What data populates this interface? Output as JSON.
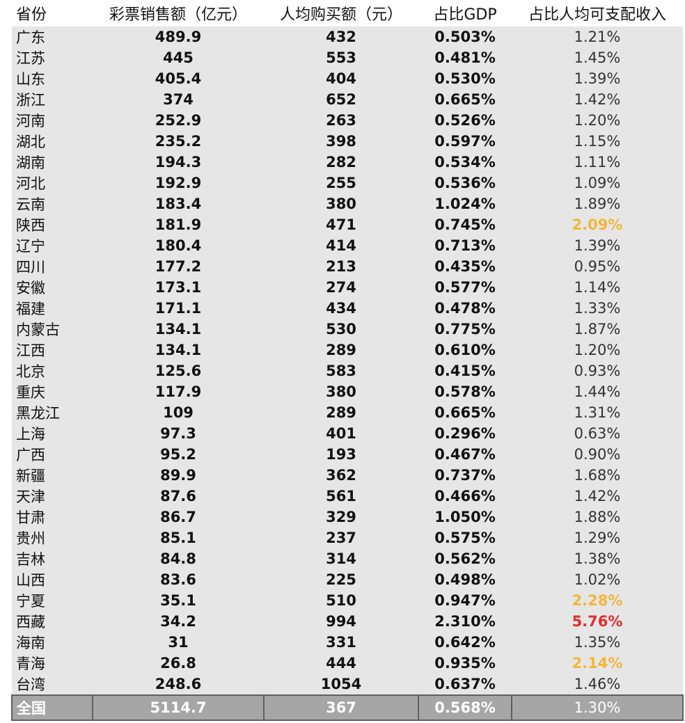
{
  "headers": [
    "省份",
    "彩票销售额（亿元）",
    "人均购买额（元）",
    "占比GDP",
    "占比人均可支配收入"
  ],
  "colors": {
    "highlight_yellow": "#f2b63b",
    "highlight_red": "#e12d2d",
    "row_bg": "#e6e6e6",
    "total_bg": "#a6a6a6"
  },
  "rows": [
    {
      "province": "广东",
      "sales": "489.9",
      "per_capita": "432",
      "gdp_share": "0.503%",
      "income_share": "1.21%",
      "flag": ""
    },
    {
      "province": "江苏",
      "sales": "445",
      "per_capita": "553",
      "gdp_share": "0.481%",
      "income_share": "1.45%",
      "flag": ""
    },
    {
      "province": "山东",
      "sales": "405.4",
      "per_capita": "404",
      "gdp_share": "0.530%",
      "income_share": "1.39%",
      "flag": ""
    },
    {
      "province": "浙江",
      "sales": "374",
      "per_capita": "652",
      "gdp_share": "0.665%",
      "income_share": "1.42%",
      "flag": ""
    },
    {
      "province": "河南",
      "sales": "252.9",
      "per_capita": "263",
      "gdp_share": "0.526%",
      "income_share": "1.20%",
      "flag": ""
    },
    {
      "province": "湖北",
      "sales": "235.2",
      "per_capita": "398",
      "gdp_share": "0.597%",
      "income_share": "1.15%",
      "flag": ""
    },
    {
      "province": "湖南",
      "sales": "194.3",
      "per_capita": "282",
      "gdp_share": "0.534%",
      "income_share": "1.11%",
      "flag": ""
    },
    {
      "province": "河北",
      "sales": "192.9",
      "per_capita": "255",
      "gdp_share": "0.536%",
      "income_share": "1.09%",
      "flag": ""
    },
    {
      "province": "云南",
      "sales": "183.4",
      "per_capita": "380",
      "gdp_share": "1.024%",
      "income_share": "1.89%",
      "flag": ""
    },
    {
      "province": "陕西",
      "sales": "181.9",
      "per_capita": "471",
      "gdp_share": "0.745%",
      "income_share": "2.09%",
      "flag": "hl"
    },
    {
      "province": "辽宁",
      "sales": "180.4",
      "per_capita": "414",
      "gdp_share": "0.713%",
      "income_share": "1.39%",
      "flag": ""
    },
    {
      "province": "四川",
      "sales": "177.2",
      "per_capita": "213",
      "gdp_share": "0.435%",
      "income_share": "0.95%",
      "flag": ""
    },
    {
      "province": "安徽",
      "sales": "173.1",
      "per_capita": "274",
      "gdp_share": "0.577%",
      "income_share": "1.14%",
      "flag": ""
    },
    {
      "province": "福建",
      "sales": "171.1",
      "per_capita": "434",
      "gdp_share": "0.478%",
      "income_share": "1.33%",
      "flag": ""
    },
    {
      "province": "内蒙古",
      "sales": "134.1",
      "per_capita": "530",
      "gdp_share": "0.775%",
      "income_share": "1.87%",
      "flag": ""
    },
    {
      "province": "江西",
      "sales": "134.1",
      "per_capita": "289",
      "gdp_share": "0.610%",
      "income_share": "1.20%",
      "flag": ""
    },
    {
      "province": "北京",
      "sales": "125.6",
      "per_capita": "583",
      "gdp_share": "0.415%",
      "income_share": "0.93%",
      "flag": ""
    },
    {
      "province": "重庆",
      "sales": "117.9",
      "per_capita": "380",
      "gdp_share": "0.578%",
      "income_share": "1.44%",
      "flag": ""
    },
    {
      "province": "黑龙江",
      "sales": "109",
      "per_capita": "289",
      "gdp_share": "0.665%",
      "income_share": "1.31%",
      "flag": ""
    },
    {
      "province": "上海",
      "sales": "97.3",
      "per_capita": "401",
      "gdp_share": "0.296%",
      "income_share": "0.63%",
      "flag": ""
    },
    {
      "province": "广西",
      "sales": "95.2",
      "per_capita": "193",
      "gdp_share": "0.467%",
      "income_share": "0.90%",
      "flag": ""
    },
    {
      "province": "新疆",
      "sales": "89.9",
      "per_capita": "362",
      "gdp_share": "0.737%",
      "income_share": "1.68%",
      "flag": ""
    },
    {
      "province": "天津",
      "sales": "87.6",
      "per_capita": "561",
      "gdp_share": "0.466%",
      "income_share": "1.42%",
      "flag": ""
    },
    {
      "province": "甘肃",
      "sales": "86.7",
      "per_capita": "329",
      "gdp_share": "1.050%",
      "income_share": "1.88%",
      "flag": ""
    },
    {
      "province": "贵州",
      "sales": "85.1",
      "per_capita": "237",
      "gdp_share": "0.575%",
      "income_share": "1.29%",
      "flag": ""
    },
    {
      "province": "吉林",
      "sales": "84.8",
      "per_capita": "314",
      "gdp_share": "0.562%",
      "income_share": "1.38%",
      "flag": ""
    },
    {
      "province": "山西",
      "sales": "83.6",
      "per_capita": "225",
      "gdp_share": "0.498%",
      "income_share": "1.02%",
      "flag": ""
    },
    {
      "province": "宁夏",
      "sales": "35.1",
      "per_capita": "510",
      "gdp_share": "0.947%",
      "income_share": "2.28%",
      "flag": "hl"
    },
    {
      "province": "西藏",
      "sales": "34.2",
      "per_capita": "994",
      "gdp_share": "2.310%",
      "income_share": "5.76%",
      "flag": "alert"
    },
    {
      "province": "海南",
      "sales": "31",
      "per_capita": "331",
      "gdp_share": "0.642%",
      "income_share": "1.35%",
      "flag": ""
    },
    {
      "province": "青海",
      "sales": "26.8",
      "per_capita": "444",
      "gdp_share": "0.935%",
      "income_share": "2.14%",
      "flag": "hl"
    },
    {
      "province": "台湾",
      "sales": "248.6",
      "per_capita": "1054",
      "gdp_share": "0.637%",
      "income_share": "1.46%",
      "flag": ""
    }
  ],
  "total": {
    "province": "全国",
    "sales": "5114.7",
    "per_capita": "367",
    "gdp_share": "0.568%",
    "income_share": "1.30%"
  }
}
